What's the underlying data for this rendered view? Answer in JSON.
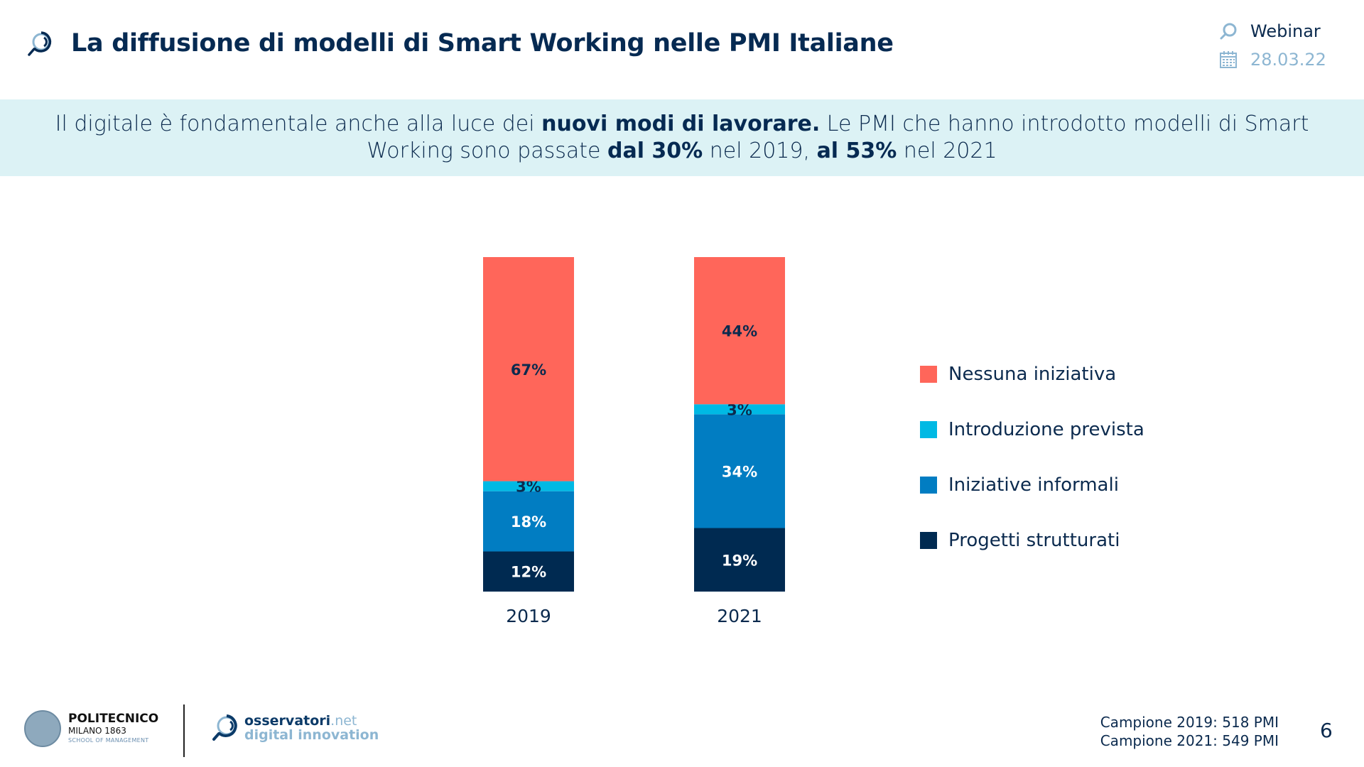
{
  "header": {
    "title": "La diffusione di modelli di Smart Working nelle PMI Italiane",
    "event_label": "Webinar",
    "date": "28.03.22",
    "title_icon": "magnifier-logo-icon",
    "event_icon": "magnifier-logo-icon",
    "date_icon": "calendar-icon"
  },
  "banner": {
    "parts": [
      {
        "text": "Il digitale è fondamentale anche alla luce dei ",
        "bold": false
      },
      {
        "text": "nuovi modi di lavorare.",
        "bold": true
      },
      {
        "text": " Le PMI che hanno introdotto modelli di Smart Working sono passate ",
        "bold": false
      },
      {
        "text": "dal 30%",
        "bold": true
      },
      {
        "text": " nel 2019, ",
        "bold": false
      },
      {
        "text": "al 53%",
        "bold": true
      },
      {
        "text": " nel 2021",
        "bold": false
      }
    ]
  },
  "chart_data": {
    "type": "bar",
    "stacked": true,
    "normalized": true,
    "title": "",
    "xlabel": "",
    "ylabel": "",
    "ylim": [
      0,
      100
    ],
    "grid": false,
    "legend_position": "right",
    "categories": [
      "2019",
      "2021"
    ],
    "series": [
      {
        "name": "Progetti strutturati",
        "color": "#002a51",
        "label_color": "#ffffff",
        "values": [
          12,
          19
        ]
      },
      {
        "name": "Iniziative informali",
        "color": "#017dc2",
        "label_color": "#ffffff",
        "values": [
          18,
          34
        ]
      },
      {
        "name": "Introduzione prevista",
        "color": "#00b9e4",
        "label_color": "#0b2a4e",
        "values": [
          3,
          3
        ]
      },
      {
        "name": "Nessuna iniziativa",
        "color": "#ff665a",
        "label_color": "#0b2a4e",
        "values": [
          67,
          44
        ]
      }
    ],
    "value_suffix": "%"
  },
  "legend": {
    "items": [
      {
        "label": "Nessuna iniziativa",
        "color": "#ff665a"
      },
      {
        "label": "Introduzione prevista",
        "color": "#00b9e4"
      },
      {
        "label": "Iniziative informali",
        "color": "#017dc2"
      },
      {
        "label": "Progetti strutturati",
        "color": "#002a51"
      }
    ]
  },
  "footer": {
    "polimi": {
      "line1": "POLITECNICO",
      "line2": "MILANO 1863",
      "line3": "SCHOOL OF MANAGEMENT"
    },
    "osservatori": {
      "brand": "osservatori",
      "tld": ".net",
      "tagline": "digital innovation"
    },
    "sample_2019": "Campione 2019: 518 PMI",
    "sample_2021": "Campione 2021: 549 PMI",
    "page_number": "6"
  }
}
